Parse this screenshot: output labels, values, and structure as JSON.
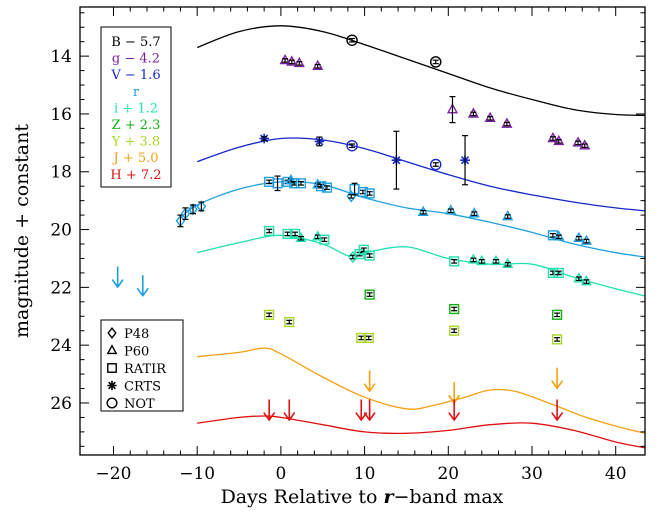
{
  "chart_data": {
    "type": "scatter",
    "xlabel_parts": [
      "Days Relative to ",
      "r",
      "−band max"
    ],
    "ylabel": "magnitude + constant",
    "xlim": [
      -24,
      43.5
    ],
    "ylim": [
      27.8,
      12.3
    ],
    "y_inverted": true,
    "xticks": [
      -20,
      -10,
      0,
      10,
      20,
      30,
      40
    ],
    "xtick_labels": [
      "−20",
      "−10",
      "0",
      "10",
      "20",
      "30",
      "40"
    ],
    "yticks": [
      14,
      16,
      18,
      20,
      22,
      24,
      26
    ],
    "ytick_labels": [
      "14",
      "16",
      "18",
      "20",
      "22",
      "24",
      "26"
    ],
    "legend_bands": [
      {
        "label": "B − 5.7",
        "color": "#000000"
      },
      {
        "label": "g − 4.2",
        "color": "#7a1fa2"
      },
      {
        "label": "V − 1.6",
        "color": "#1528c8"
      },
      {
        "label": "r",
        "color": "#1ea0e0"
      },
      {
        "label": "i + 1.2",
        "color": "#1fe0b0"
      },
      {
        "label": "Z + 2.3",
        "color": "#10b010"
      },
      {
        "label": "Y + 3.8",
        "color": "#a8d820"
      },
      {
        "label": "J + 5.0",
        "color": "#f5a010"
      },
      {
        "label": "H + 7.2",
        "color": "#e01010"
      }
    ],
    "legend_instruments": [
      {
        "label": "P48",
        "marker": "diamond"
      },
      {
        "label": "P60",
        "marker": "triangle"
      },
      {
        "label": "RATIR",
        "marker": "square"
      },
      {
        "label": "CRTS",
        "marker": "asterisk"
      },
      {
        "label": "NOT",
        "marker": "circle"
      }
    ],
    "curves": [
      {
        "band": "B",
        "color": "#000000",
        "points": [
          [
            -10,
            13.7
          ],
          [
            -5,
            13.15
          ],
          [
            0,
            12.95
          ],
          [
            5,
            13.15
          ],
          [
            10,
            13.6
          ],
          [
            15,
            14.1
          ],
          [
            20,
            14.6
          ],
          [
            25,
            15.1
          ],
          [
            30,
            15.5
          ],
          [
            35,
            15.85
          ],
          [
            40,
            16.02
          ],
          [
            43.5,
            16.05
          ]
        ]
      },
      {
        "band": "V",
        "color": "#1528c8",
        "points": [
          [
            -10,
            17.65
          ],
          [
            -5,
            17.15
          ],
          [
            0,
            16.85
          ],
          [
            5,
            16.9
          ],
          [
            10,
            17.2
          ],
          [
            15,
            17.65
          ],
          [
            20,
            18.1
          ],
          [
            25,
            18.5
          ],
          [
            30,
            18.8
          ],
          [
            35,
            19.05
          ],
          [
            40,
            19.25
          ],
          [
            43.5,
            19.35
          ]
        ]
      },
      {
        "band": "r",
        "color": "#1ea0e0",
        "points": [
          [
            -12,
            19.6
          ],
          [
            -10,
            19.15
          ],
          [
            -5,
            18.6
          ],
          [
            0,
            18.35
          ],
          [
            5,
            18.45
          ],
          [
            10,
            18.9
          ],
          [
            15,
            19.25
          ],
          [
            20,
            19.45
          ],
          [
            25,
            19.75
          ],
          [
            30,
            20.1
          ],
          [
            35,
            20.5
          ],
          [
            40,
            20.8
          ],
          [
            43.5,
            20.95
          ]
        ]
      },
      {
        "band": "i",
        "color": "#1fe0b0",
        "points": [
          [
            -10,
            20.8
          ],
          [
            -5,
            20.45
          ],
          [
            0,
            20.2
          ],
          [
            5,
            20.5
          ],
          [
            8,
            20.9
          ],
          [
            10,
            20.8
          ],
          [
            15,
            20.6
          ],
          [
            20,
            21.0
          ],
          [
            25,
            21.2
          ],
          [
            30,
            21.2
          ],
          [
            35,
            21.65
          ],
          [
            40,
            22.05
          ],
          [
            43.5,
            22.3
          ]
        ]
      },
      {
        "band": "J",
        "color": "#f5a010",
        "points": [
          [
            -10,
            24.4
          ],
          [
            -5,
            24.25
          ],
          [
            -2,
            24.1
          ],
          [
            0,
            24.3
          ],
          [
            5,
            25.1
          ],
          [
            10,
            25.8
          ],
          [
            15,
            26.2
          ],
          [
            18,
            26.1
          ],
          [
            22,
            25.8
          ],
          [
            25,
            25.55
          ],
          [
            28,
            25.6
          ],
          [
            32,
            26.0
          ],
          [
            36,
            26.45
          ],
          [
            40,
            26.8
          ],
          [
            43.5,
            27.05
          ]
        ]
      },
      {
        "band": "H",
        "color": "#e01010",
        "points": [
          [
            -10,
            26.7
          ],
          [
            -5,
            26.5
          ],
          [
            -2,
            26.45
          ],
          [
            0,
            26.5
          ],
          [
            5,
            26.75
          ],
          [
            10,
            27.0
          ],
          [
            15,
            27.05
          ],
          [
            20,
            26.95
          ],
          [
            25,
            26.75
          ],
          [
            30,
            26.7
          ],
          [
            35,
            26.95
          ],
          [
            40,
            27.35
          ],
          [
            43.5,
            27.55
          ]
        ]
      }
    ],
    "points": [
      {
        "band": "B",
        "instrument": "NOT",
        "color": "#000000",
        "x": 8.5,
        "y": 13.45
      },
      {
        "band": "B",
        "instrument": "NOT",
        "color": "#000000",
        "x": 18.5,
        "y": 14.2
      },
      {
        "band": "g",
        "instrument": "P60",
        "color": "#7a1fa2",
        "x": 0.5,
        "y": 14.15
      },
      {
        "band": "g",
        "instrument": "P60",
        "color": "#7a1fa2",
        "x": 1.3,
        "y": 14.2
      },
      {
        "band": "g",
        "instrument": "P60",
        "color": "#7a1fa2",
        "x": 2.2,
        "y": 14.25
      },
      {
        "band": "g",
        "instrument": "P60",
        "color": "#7a1fa2",
        "x": 4.4,
        "y": 14.35
      },
      {
        "band": "g",
        "instrument": "P60",
        "color": "#7a1fa2",
        "x": 20.5,
        "y": 15.85,
        "err": 0.45
      },
      {
        "band": "g",
        "instrument": "P60",
        "color": "#7a1fa2",
        "x": 23.0,
        "y": 16.0
      },
      {
        "band": "g",
        "instrument": "P60",
        "color": "#7a1fa2",
        "x": 25.0,
        "y": 16.15
      },
      {
        "band": "g",
        "instrument": "P60",
        "color": "#7a1fa2",
        "x": 27.0,
        "y": 16.35
      },
      {
        "band": "g",
        "instrument": "P60",
        "color": "#7a1fa2",
        "x": 32.5,
        "y": 16.85
      },
      {
        "band": "g",
        "instrument": "P60",
        "color": "#7a1fa2",
        "x": 33.2,
        "y": 16.95
      },
      {
        "band": "g",
        "instrument": "P60",
        "color": "#7a1fa2",
        "x": 35.5,
        "y": 17.0
      },
      {
        "band": "g",
        "instrument": "P60",
        "color": "#7a1fa2",
        "x": 36.3,
        "y": 17.1
      },
      {
        "band": "V",
        "instrument": "CRTS",
        "color": "#1528c8",
        "x": -2.0,
        "y": 16.85
      },
      {
        "band": "V",
        "instrument": "CRTS",
        "color": "#1528c8",
        "x": 4.6,
        "y": 16.95,
        "err": 0.15
      },
      {
        "band": "V",
        "instrument": "NOT",
        "color": "#1528c8",
        "x": 8.5,
        "y": 17.1
      },
      {
        "band": "V",
        "instrument": "CRTS",
        "color": "#1528c8",
        "x": 13.8,
        "y": 17.6,
        "err": 1.0
      },
      {
        "band": "V",
        "instrument": "NOT",
        "color": "#1528c8",
        "x": 18.5,
        "y": 17.75
      },
      {
        "band": "V",
        "instrument": "CRTS",
        "color": "#1528c8",
        "x": 22.0,
        "y": 17.6,
        "err": 0.85
      },
      {
        "band": "r",
        "instrument": "P48",
        "color": "#1ea0e0",
        "x": -12.0,
        "y": 19.7,
        "err": 0.2
      },
      {
        "band": "r",
        "instrument": "P48",
        "color": "#1ea0e0",
        "x": -11.4,
        "y": 19.45,
        "err": 0.2
      },
      {
        "band": "r",
        "instrument": "P48",
        "color": "#1ea0e0",
        "x": -10.5,
        "y": 19.3,
        "err": 0.15
      },
      {
        "band": "r",
        "instrument": "P48",
        "color": "#1ea0e0",
        "x": -9.5,
        "y": 19.2,
        "err": 0.15
      },
      {
        "band": "r",
        "instrument": "RATIR",
        "color": "#1ea0e0",
        "x": -1.4,
        "y": 18.35
      },
      {
        "band": "r",
        "instrument": "RATIR",
        "color": "#1ea0e0",
        "x": -0.4,
        "y": 18.4,
        "err": 0.25
      },
      {
        "band": "r",
        "instrument": "RATIR",
        "color": "#1ea0e0",
        "x": 0.8,
        "y": 18.35
      },
      {
        "band": "r",
        "instrument": "P60",
        "color": "#1ea0e0",
        "x": 1.2,
        "y": 18.3
      },
      {
        "band": "r",
        "instrument": "RATIR",
        "color": "#1ea0e0",
        "x": 1.6,
        "y": 18.4
      },
      {
        "band": "r",
        "instrument": "RATIR",
        "color": "#1ea0e0",
        "x": 2.4,
        "y": 18.4
      },
      {
        "band": "r",
        "instrument": "P60",
        "color": "#1ea0e0",
        "x": 4.4,
        "y": 18.45
      },
      {
        "band": "r",
        "instrument": "RATIR",
        "color": "#1ea0e0",
        "x": 4.8,
        "y": 18.5
      },
      {
        "band": "r",
        "instrument": "RATIR",
        "color": "#1ea0e0",
        "x": 5.5,
        "y": 18.55
      },
      {
        "band": "r",
        "instrument": "P48",
        "color": "#1ea0e0",
        "x": 8.4,
        "y": 18.85
      },
      {
        "band": "r",
        "instrument": "RATIR",
        "color": "#1ea0e0",
        "x": 8.8,
        "y": 18.6,
        "err": 0.2
      },
      {
        "band": "r",
        "instrument": "RATIR",
        "color": "#1ea0e0",
        "x": 9.8,
        "y": 18.7
      },
      {
        "band": "r",
        "instrument": "RATIR",
        "color": "#1ea0e0",
        "x": 10.6,
        "y": 18.75
      },
      {
        "band": "r",
        "instrument": "P60",
        "color": "#1ea0e0",
        "x": 17.0,
        "y": 19.4
      },
      {
        "band": "r",
        "instrument": "P60",
        "color": "#1ea0e0",
        "x": 20.3,
        "y": 19.35
      },
      {
        "band": "r",
        "instrument": "P60",
        "color": "#1ea0e0",
        "x": 23.1,
        "y": 19.45
      },
      {
        "band": "r",
        "instrument": "P60",
        "color": "#1ea0e0",
        "x": 27.1,
        "y": 19.55
      },
      {
        "band": "r",
        "instrument": "RATIR",
        "color": "#1ea0e0",
        "x": 32.5,
        "y": 20.2
      },
      {
        "band": "r",
        "instrument": "P60",
        "color": "#1ea0e0",
        "x": 33.2,
        "y": 20.25
      },
      {
        "band": "r",
        "instrument": "P60",
        "color": "#1ea0e0",
        "x": 35.6,
        "y": 20.3
      },
      {
        "band": "r",
        "instrument": "P60",
        "color": "#1ea0e0",
        "x": 36.5,
        "y": 20.4
      },
      {
        "band": "i",
        "instrument": "RATIR",
        "color": "#1fe0b0",
        "x": -1.4,
        "y": 20.05
      },
      {
        "band": "i",
        "instrument": "RATIR",
        "color": "#1fe0b0",
        "x": 0.8,
        "y": 20.15
      },
      {
        "band": "i",
        "instrument": "RATIR",
        "color": "#1fe0b0",
        "x": 1.7,
        "y": 20.15
      },
      {
        "band": "i",
        "instrument": "P60",
        "color": "#1fe0b0",
        "x": 2.4,
        "y": 20.3
      },
      {
        "band": "i",
        "instrument": "P60",
        "color": "#1fe0b0",
        "x": 4.4,
        "y": 20.25
      },
      {
        "band": "i",
        "instrument": "RATIR",
        "color": "#1fe0b0",
        "x": 5.2,
        "y": 20.35
      },
      {
        "band": "i",
        "instrument": "P48",
        "color": "#1fe0b0",
        "x": 8.6,
        "y": 20.95
      },
      {
        "band": "i",
        "instrument": "RATIR",
        "color": "#1fe0b0",
        "x": 9.4,
        "y": 20.85
      },
      {
        "band": "i",
        "instrument": "RATIR",
        "color": "#1fe0b0",
        "x": 9.9,
        "y": 20.7
      },
      {
        "band": "i",
        "instrument": "RATIR",
        "color": "#1fe0b0",
        "x": 10.6,
        "y": 20.9
      },
      {
        "band": "i",
        "instrument": "RATIR",
        "color": "#1fe0b0",
        "x": 20.7,
        "y": 21.1
      },
      {
        "band": "i",
        "instrument": "P60",
        "color": "#1fe0b0",
        "x": 23.0,
        "y": 21.05
      },
      {
        "band": "i",
        "instrument": "P60",
        "color": "#1fe0b0",
        "x": 24.0,
        "y": 21.1
      },
      {
        "band": "i",
        "instrument": "P60",
        "color": "#1fe0b0",
        "x": 25.7,
        "y": 21.1
      },
      {
        "band": "i",
        "instrument": "P60",
        "color": "#1fe0b0",
        "x": 27.1,
        "y": 21.2
      },
      {
        "band": "i",
        "instrument": "RATIR",
        "color": "#1fe0b0",
        "x": 32.5,
        "y": 21.5
      },
      {
        "band": "i",
        "instrument": "RATIR",
        "color": "#1fe0b0",
        "x": 33.2,
        "y": 21.5
      },
      {
        "band": "i",
        "instrument": "P60",
        "color": "#1fe0b0",
        "x": 35.6,
        "y": 21.7
      },
      {
        "band": "i",
        "instrument": "P60",
        "color": "#1fe0b0",
        "x": 36.5,
        "y": 21.8
      },
      {
        "band": "Z",
        "instrument": "RATIR",
        "color": "#10b010",
        "x": 10.6,
        "y": 22.25
      },
      {
        "band": "Z",
        "instrument": "RATIR",
        "color": "#10b010",
        "x": 20.7,
        "y": 22.75
      },
      {
        "band": "Z",
        "instrument": "RATIR",
        "color": "#10b010",
        "x": 33.0,
        "y": 22.95
      },
      {
        "band": "Y",
        "instrument": "RATIR",
        "color": "#a8d820",
        "x": -1.4,
        "y": 22.95
      },
      {
        "band": "Y",
        "instrument": "RATIR",
        "color": "#a8d820",
        "x": 1.0,
        "y": 23.2
      },
      {
        "band": "Y",
        "instrument": "RATIR",
        "color": "#a8d820",
        "x": 9.6,
        "y": 23.75
      },
      {
        "band": "Y",
        "instrument": "RATIR",
        "color": "#a8d820",
        "x": 10.5,
        "y": 23.75
      },
      {
        "band": "Y",
        "instrument": "RATIR",
        "color": "#a8d820",
        "x": 20.7,
        "y": 23.5
      },
      {
        "band": "Y",
        "instrument": "RATIR",
        "color": "#a8d820",
        "x": 33.0,
        "y": 23.8
      }
    ],
    "upper_limits": [
      {
        "band": "r",
        "color": "#1ea0e0",
        "x": -19.5,
        "y": 21.3
      },
      {
        "band": "r",
        "color": "#1ea0e0",
        "x": -16.5,
        "y": 21.6
      },
      {
        "band": "J",
        "color": "#f5a010",
        "x": 10.6,
        "y": 24.9
      },
      {
        "band": "J",
        "color": "#f5a010",
        "x": 20.7,
        "y": 25.3
      },
      {
        "band": "J",
        "color": "#f5a010",
        "x": 33.0,
        "y": 24.8
      },
      {
        "band": "H",
        "color": "#e01010",
        "x": -1.4,
        "y": 25.9
      },
      {
        "band": "H",
        "color": "#e01010",
        "x": 1.0,
        "y": 25.9
      },
      {
        "band": "H",
        "color": "#e01010",
        "x": 9.6,
        "y": 25.9
      },
      {
        "band": "H",
        "color": "#e01010",
        "x": 10.6,
        "y": 25.9
      },
      {
        "band": "H",
        "color": "#e01010",
        "x": 20.7,
        "y": 25.9
      },
      {
        "band": "H",
        "color": "#e01010",
        "x": 33.0,
        "y": 25.9
      }
    ]
  }
}
